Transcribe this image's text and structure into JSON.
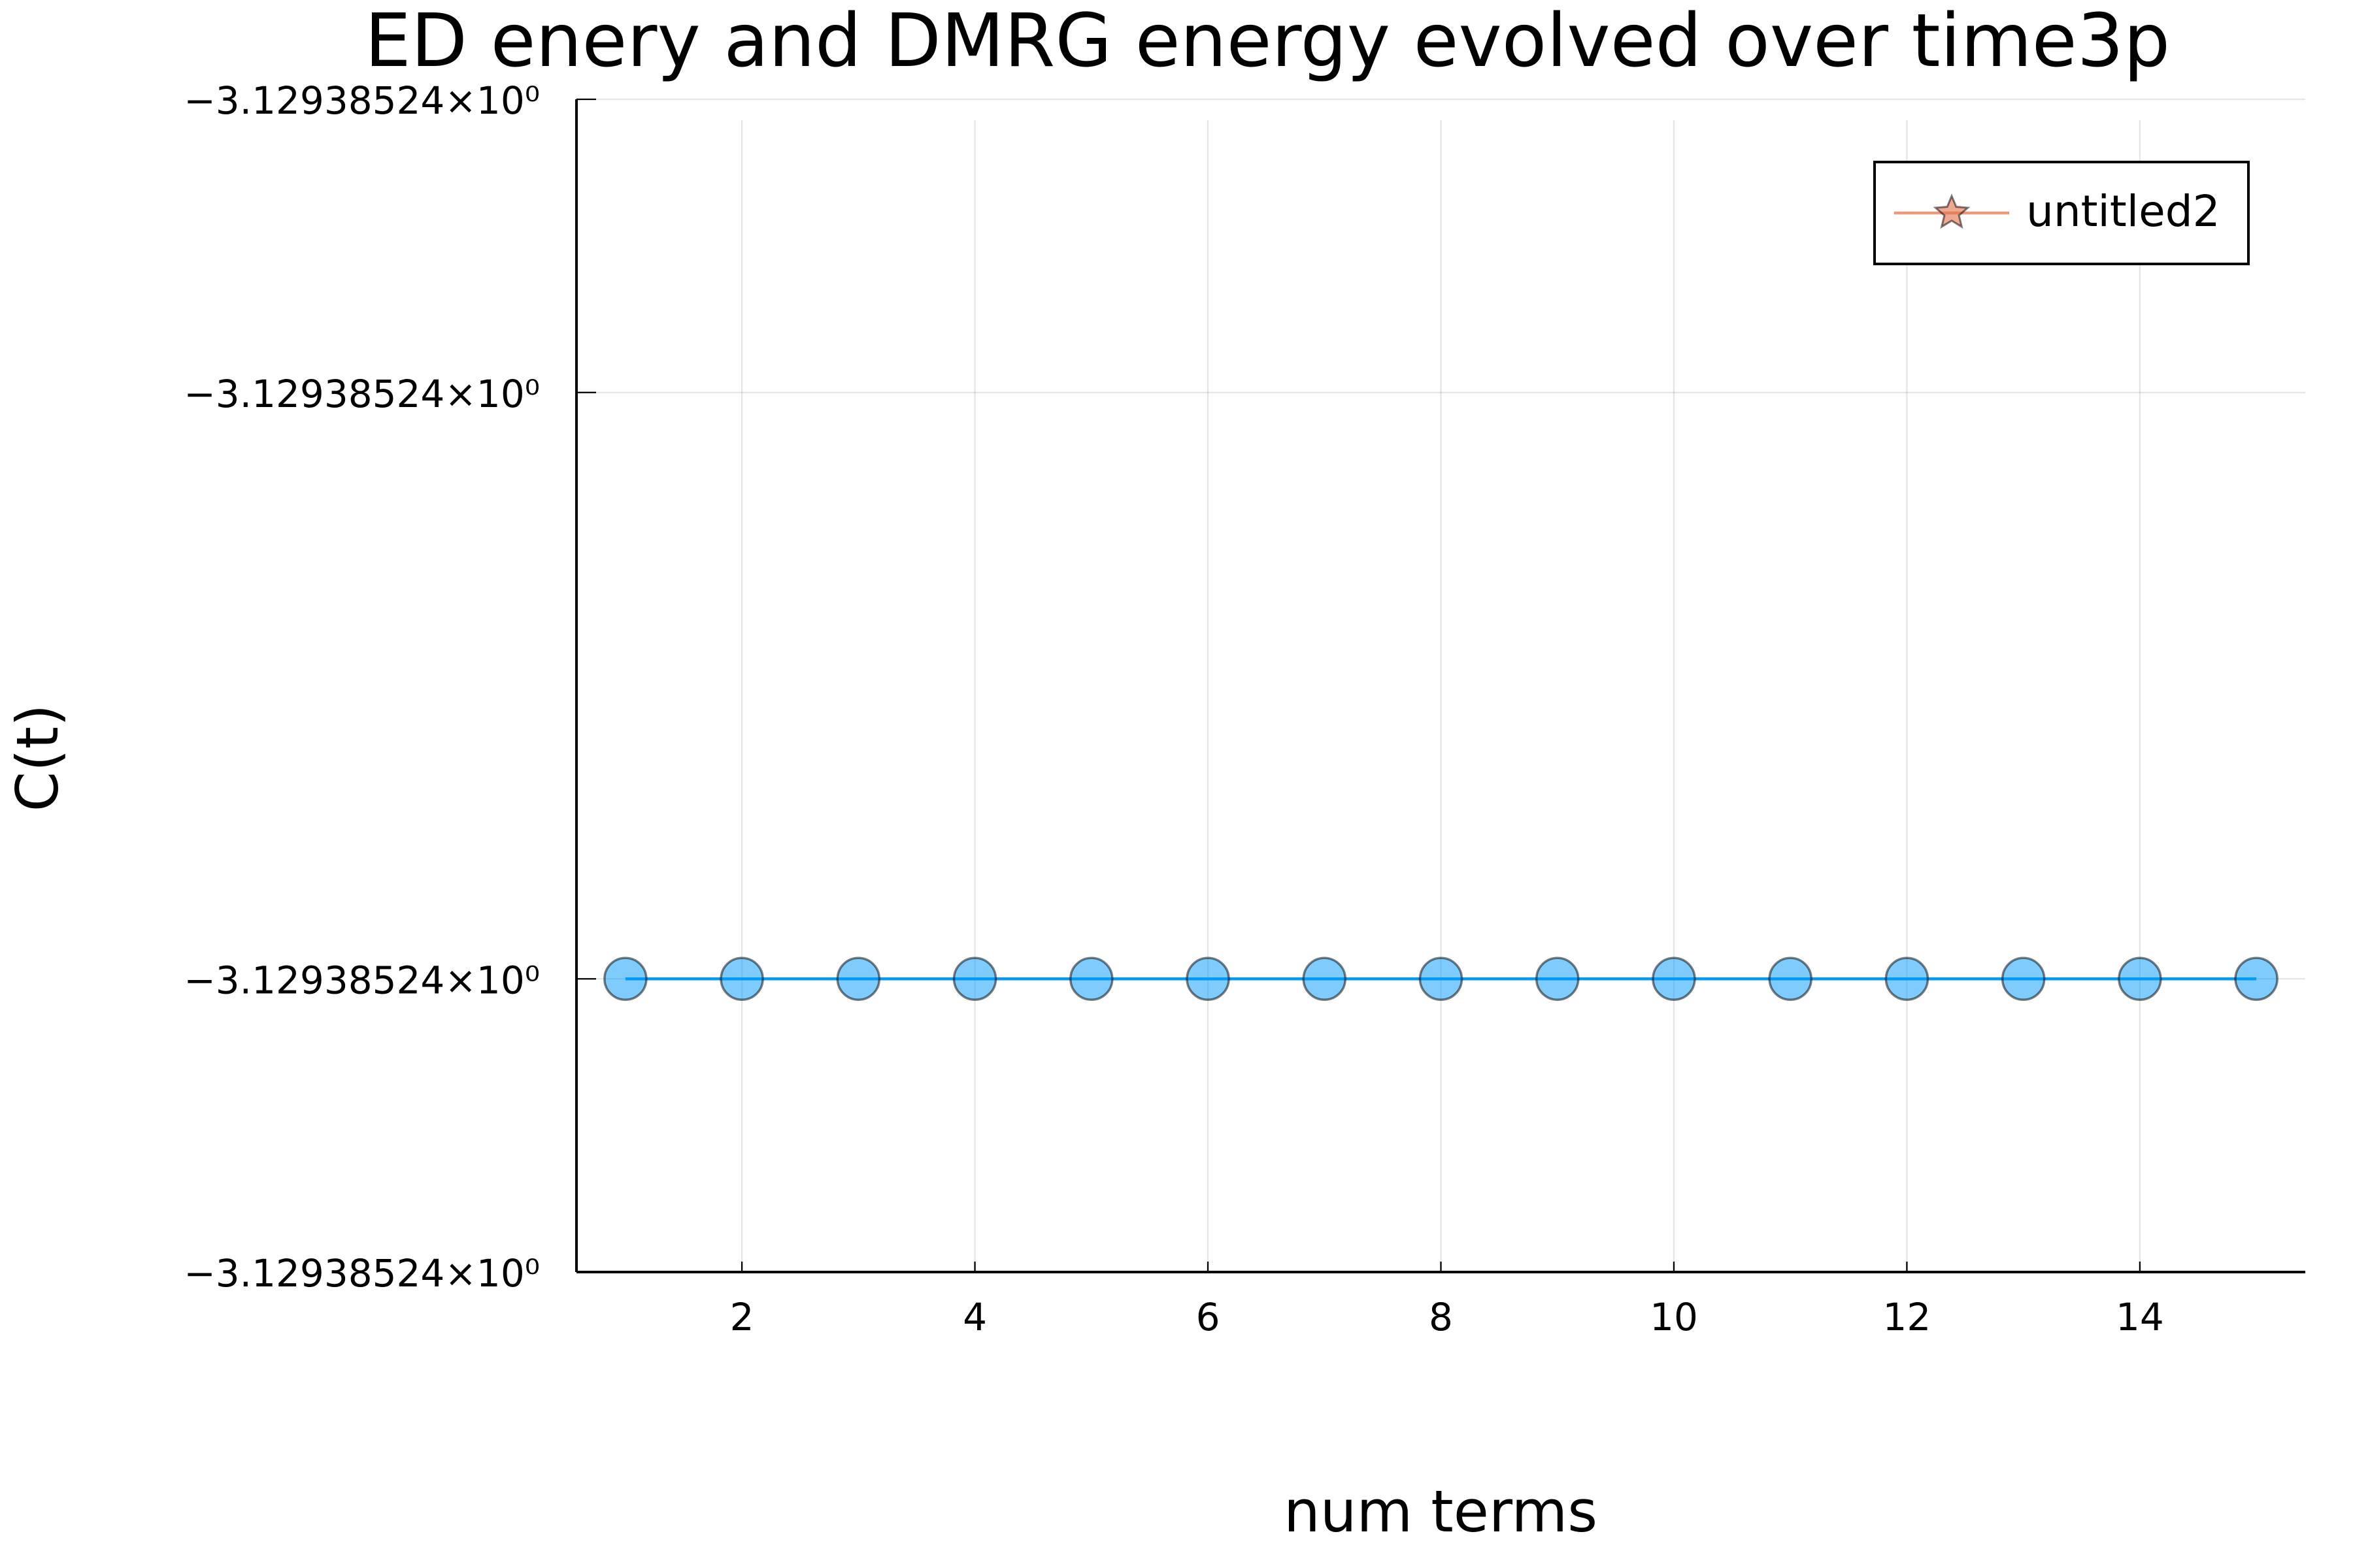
{
  "chart_data": {
    "type": "line",
    "title": "ED enery and DMRG energy evolved over time3p",
    "xlabel": "num terms",
    "ylabel": "C(t)",
    "x": [
      1,
      2,
      3,
      4,
      5,
      6,
      7,
      8,
      9,
      10,
      11,
      12,
      13,
      14,
      15
    ],
    "series": [
      {
        "color": "#009af9",
        "marker": "circle",
        "values": [
          -3.1293852403,
          -3.1293852403,
          -3.1293852403,
          -3.1293852403,
          -3.1293852403,
          -3.1293852403,
          -3.1293852403,
          -3.1293852403,
          -3.1293852403,
          -3.1293852403,
          -3.1293852403,
          -3.1293852403,
          -3.1293852403,
          -3.1293852403,
          -3.1293852403
        ]
      },
      {
        "name": "untitled2",
        "color": "#e26f46",
        "marker": "star",
        "values": [
          null,
          null,
          null,
          null,
          null,
          null,
          null,
          null,
          null,
          null,
          null,
          null,
          null,
          null,
          null
        ]
      }
    ],
    "xlim": [
      0.58,
      15.42
    ],
    "xticks": [
      2,
      4,
      6,
      8,
      10,
      12,
      14
    ],
    "ylim": [
      -3.1293852404,
      -3.12938524
    ],
    "yticks": [
      {
        "value": -3.1293852404,
        "label": "−3.12938524×10⁰"
      },
      {
        "value": -3.1293852403,
        "label": "−3.12938524×10⁰"
      },
      {
        "value": -3.1293852401,
        "label": "−3.12938524×10⁰"
      },
      {
        "value": -3.12938524,
        "label": "−3.12938524×10⁰"
      }
    ],
    "grid": true,
    "legend": "top-right"
  }
}
